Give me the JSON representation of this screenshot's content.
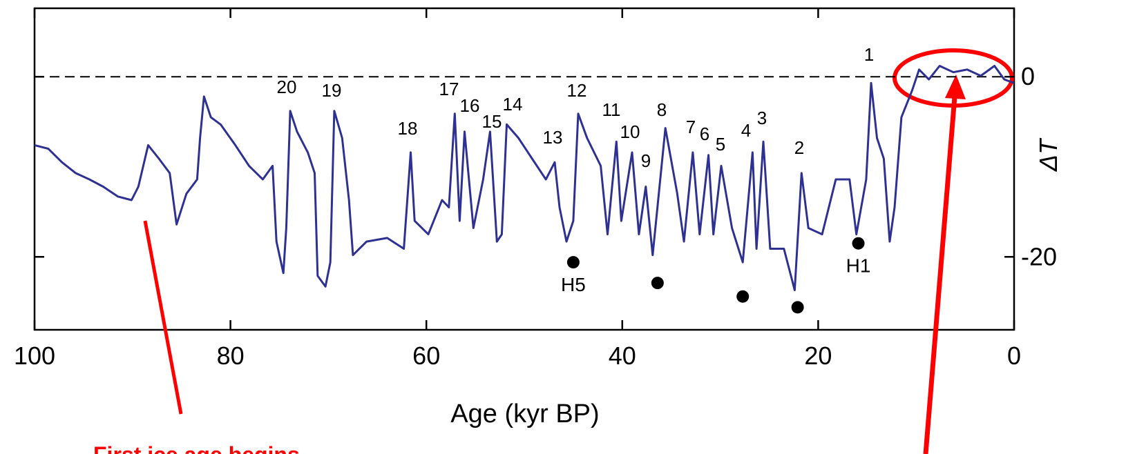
{
  "chart_data": {
    "type": "line",
    "xlabel": "Age (kyr BP)",
    "ylabel": "ΔT",
    "x": [
      100,
      98.6,
      97.2,
      95.8,
      94.4,
      93,
      91.5,
      90.1,
      89.4,
      88.4,
      87.3,
      86.2,
      85.5,
      84.5,
      83.4,
      83.1,
      82.7,
      82,
      81,
      79.5,
      78.1,
      76.7,
      75.7,
      75.3,
      74.6,
      74.3,
      73.9,
      73.2,
      72.1,
      71.4,
      71.1,
      70.3,
      69.8,
      69.4,
      68.6,
      67.9,
      67.5,
      66.1,
      64,
      62.3,
      61.6,
      61.2,
      59.8,
      58.4,
      57.7,
      57.1,
      56.6,
      56.1,
      55.2,
      54.2,
      53.5,
      52.8,
      52.3,
      51.8,
      50.6,
      49.2,
      47.8,
      46.9,
      46.4,
      45.7,
      45,
      44.5,
      43.6,
      42.2,
      41.5,
      40.6,
      40.1,
      39,
      38.3,
      37.6,
      36.9,
      35.6,
      34.4,
      33.7,
      32.8,
      32.1,
      31.2,
      30.7,
      29.9,
      28.8,
      27.7,
      26.7,
      26.3,
      25.6,
      24.9,
      23.5,
      22.4,
      21.7,
      21,
      19.6,
      18.2,
      16.8,
      16.1,
      15.1,
      14.6,
      14,
      13.3,
      12.7,
      12.2,
      11.5,
      10.4,
      9.7,
      8.7,
      7.6,
      6.2,
      4.8,
      3.4,
      2,
      1,
      0
    ],
    "values": [
      -7.6,
      -8.0,
      -9.5,
      -10.7,
      -11.4,
      -12.2,
      -13.3,
      -13.7,
      -12.2,
      -7.6,
      -9.1,
      -10.7,
      -16.4,
      -13,
      -11.4,
      -6.8,
      -2.2,
      -4.5,
      -5.3,
      -7.6,
      -9.9,
      -11.4,
      -9.9,
      -18.3,
      -21.8,
      -16.8,
      -3.8,
      -6.1,
      -8.4,
      -10.7,
      -22.1,
      -23.3,
      -20.6,
      -3.8,
      -6.8,
      -13.7,
      -19.8,
      -18.3,
      -17.9,
      -19.1,
      -8.4,
      -16,
      -17.5,
      -13.7,
      -14.5,
      -4.1,
      -16,
      -6.1,
      -16.8,
      -11.4,
      -6.1,
      -18.3,
      -17.5,
      -5.3,
      -6.8,
      -9.1,
      -11.4,
      -9.5,
      -14.5,
      -18.3,
      -16,
      -4.1,
      -6.8,
      -9.9,
      -17.5,
      -7.2,
      -16,
      -8.4,
      -17.5,
      -12.2,
      -19.8,
      -5.7,
      -12.9,
      -18.3,
      -8.4,
      -17.5,
      -8.7,
      -17.5,
      -9.9,
      -16.8,
      -20.6,
      -8.4,
      -19.1,
      -7.2,
      -19.1,
      -19.1,
      -23.7,
      -10.7,
      -16.8,
      -17.5,
      -11.4,
      -11.4,
      -17.5,
      -11.4,
      -0.7,
      -6.8,
      -9.1,
      -18.3,
      -14.5,
      -4.5,
      -1.5,
      0.8,
      -0.3,
      1.2,
      0.5,
      0.8,
      0.1,
      1.2,
      -0.3,
      -0.7
    ],
    "color": "#2e3192",
    "xlim": [
      100,
      0
    ],
    "xticks": [
      100,
      80,
      60,
      40,
      20,
      0
    ],
    "ylim": [
      -28.1,
      7.6
    ],
    "yticks": [
      -20,
      0
    ],
    "reference_line": 0,
    "events": [
      "1",
      "20",
      "19",
      "18",
      "17",
      "16",
      "15",
      "14",
      "13",
      "12",
      "11",
      "10",
      "9",
      "8",
      "7",
      "6",
      "5",
      "4",
      "3",
      "2"
    ],
    "markers": {
      "x": [
        45,
        36.4,
        27.7,
        22.1,
        15.9
      ],
      "values": [
        -20.6,
        -22.9,
        -24.4,
        -25.6,
        -18.5
      ],
      "labels": [
        "H5",
        null,
        null,
        null,
        "H1"
      ]
    },
    "annotation": "First ice age begins"
  }
}
